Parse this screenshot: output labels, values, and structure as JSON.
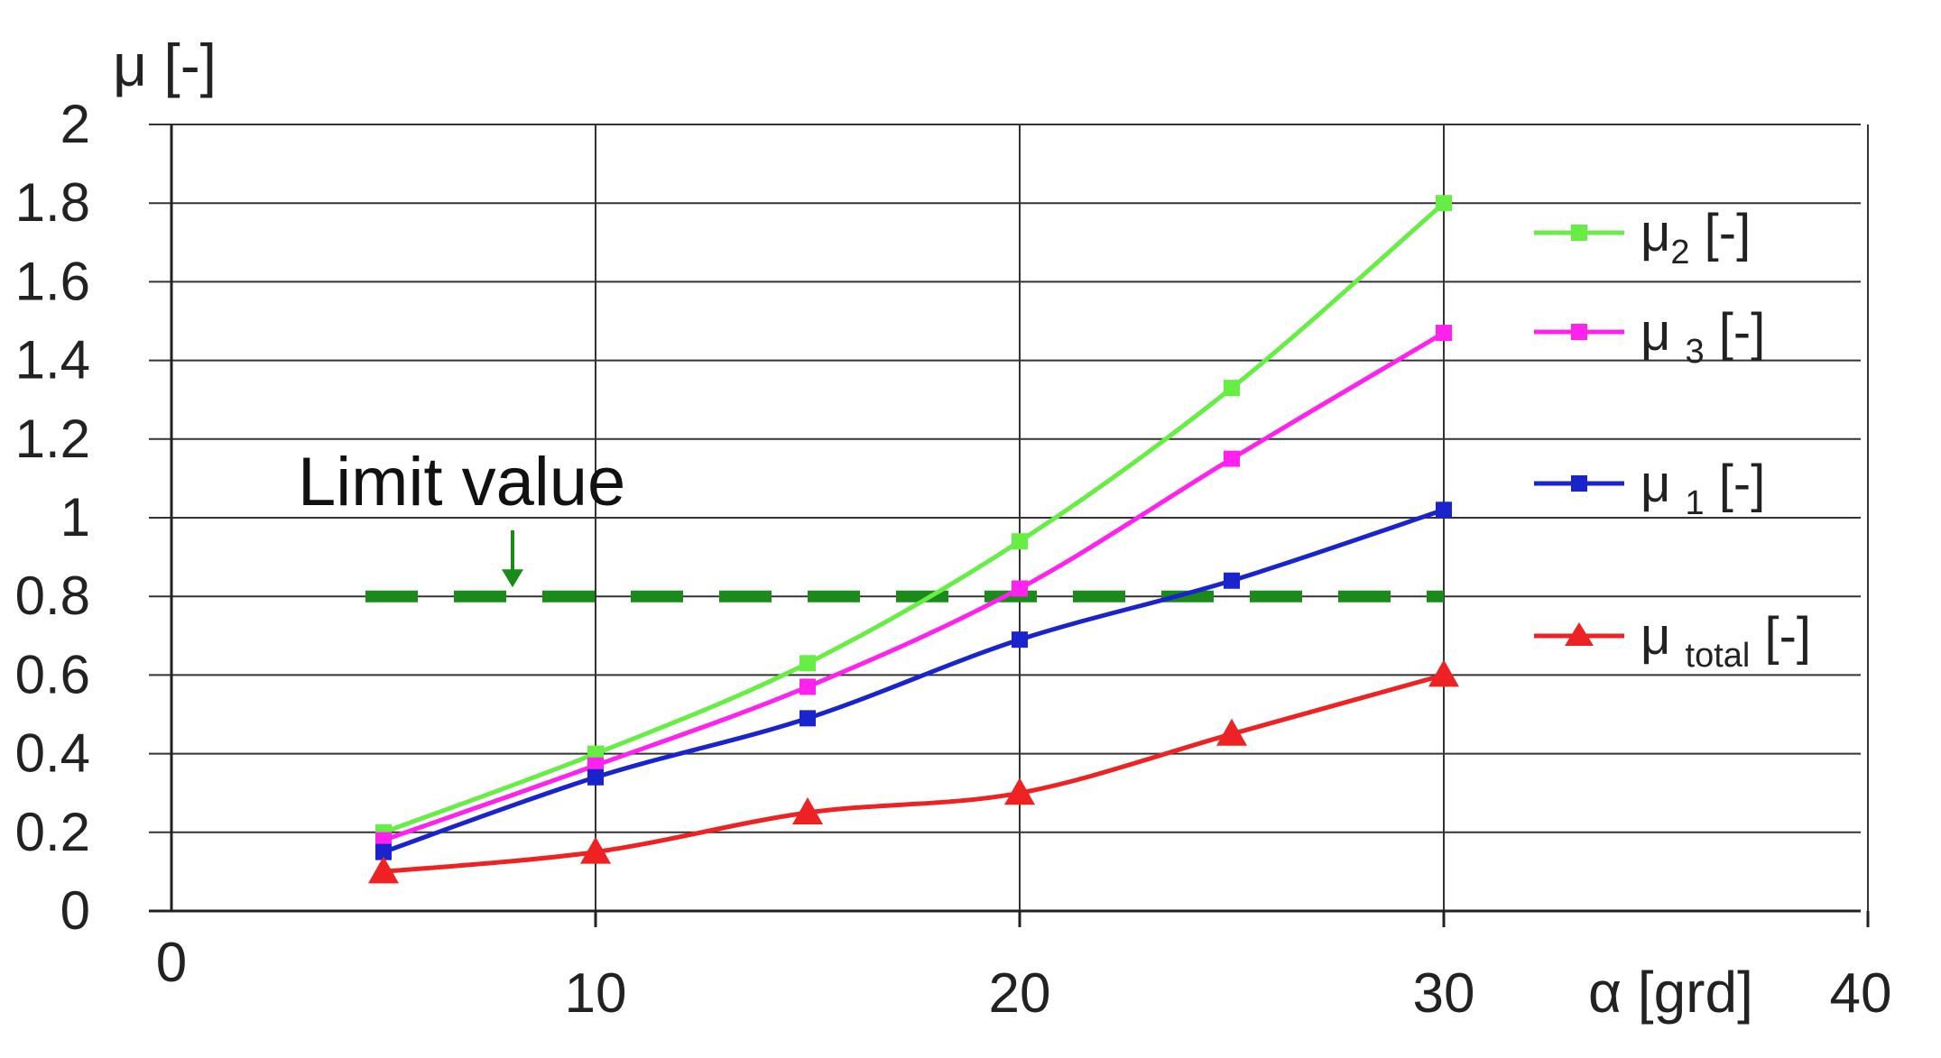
{
  "chart_data": {
    "type": "line",
    "ylabel": "μ [-]",
    "xlabel": "α [grd]",
    "xlim": [
      0,
      40
    ],
    "ylim": [
      0,
      2
    ],
    "x_ticks": [
      0,
      10,
      20,
      30,
      40
    ],
    "y_ticks": [
      "0",
      "0.2",
      "0.4",
      "0.6",
      "0.8",
      "1",
      "1.2",
      "1.4",
      "1.6",
      "1.8",
      "2"
    ],
    "grid": true,
    "legend_position": "right",
    "annotation": {
      "text": "Limit value",
      "value": 0.8,
      "x_start": 5,
      "x_end": 30,
      "style": "dashed",
      "color": "#1a8a1a"
    },
    "series": [
      {
        "label_base": "μ",
        "label_sub": "2",
        "label_unit": "[-]",
        "color": "#66ee44",
        "marker": "square",
        "x": [
          5,
          10,
          15,
          20,
          25,
          30
        ],
        "values": [
          0.2,
          0.4,
          0.63,
          0.94,
          1.33,
          1.8
        ]
      },
      {
        "label_base": "μ ",
        "label_sub": "3",
        "label_unit": "[-]",
        "color": "#ff22ee",
        "marker": "square",
        "x": [
          5,
          10,
          15,
          20,
          25,
          30
        ],
        "values": [
          0.18,
          0.37,
          0.57,
          0.82,
          1.15,
          1.47
        ]
      },
      {
        "label_base": "μ ",
        "label_sub": "1",
        "label_unit": "[-]",
        "color": "#1a24cc",
        "marker": "square",
        "x": [
          5,
          10,
          15,
          20,
          25,
          30
        ],
        "values": [
          0.15,
          0.34,
          0.49,
          0.69,
          0.84,
          1.02
        ]
      },
      {
        "label_base": "μ ",
        "label_sub": "total",
        "label_unit": "[-]",
        "color": "#ee2222",
        "marker": "triangle",
        "x": [
          5,
          10,
          15,
          20,
          25,
          30
        ],
        "values": [
          0.1,
          0.15,
          0.25,
          0.3,
          0.45,
          0.6
        ]
      }
    ]
  }
}
